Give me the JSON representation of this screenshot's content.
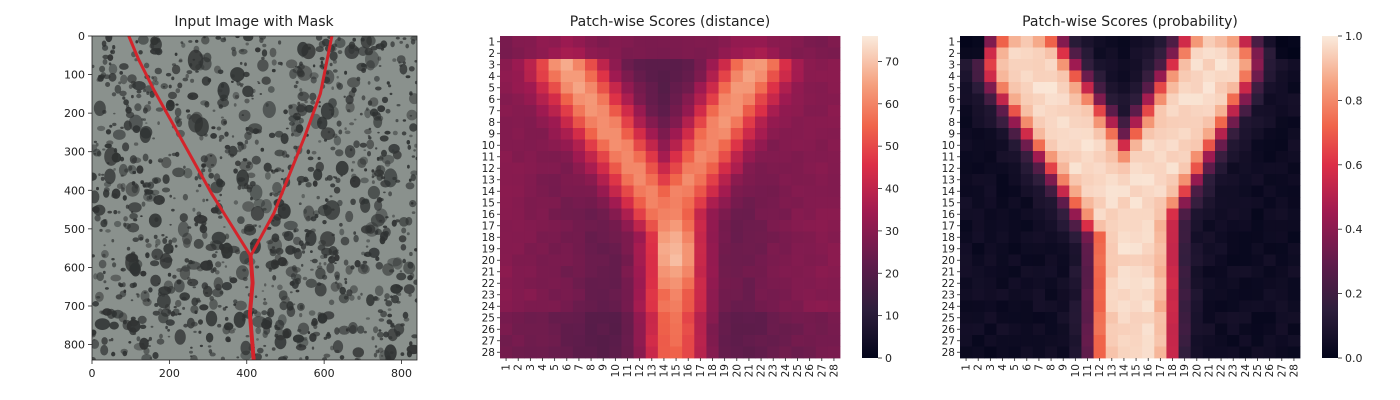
{
  "chart_data": [
    {
      "type": "image",
      "title": "Input Image with Mask",
      "xlim": [
        0,
        840
      ],
      "ylim": [
        840,
        0
      ],
      "xticks": [
        0,
        200,
        400,
        600,
        800
      ],
      "yticks": [
        0,
        100,
        200,
        300,
        400,
        500,
        600,
        700,
        800
      ],
      "mask_path": [
        [
          95,
          0
        ],
        [
          120,
          60
        ],
        [
          160,
          140
        ],
        [
          210,
          230
        ],
        [
          260,
          320
        ],
        [
          310,
          410
        ],
        [
          360,
          490
        ],
        [
          410,
          570
        ],
        [
          470,
          460
        ],
        [
          510,
          360
        ],
        [
          550,
          260
        ],
        [
          590,
          150
        ],
        [
          620,
          0
        ]
      ],
      "mask_trunk": [
        [
          410,
          570
        ],
        [
          415,
          640
        ],
        [
          408,
          720
        ],
        [
          418,
          840
        ]
      ],
      "colors": {
        "mask": "#d4242b",
        "background": "#8a918d",
        "speckle": "#2f3232"
      }
    },
    {
      "type": "heatmap",
      "title": "Patch-wise Scores (distance)",
      "x_categories": [
        "1",
        "2",
        "3",
        "4",
        "5",
        "6",
        "7",
        "8",
        "9",
        "10",
        "11",
        "12",
        "13",
        "14",
        "15",
        "16",
        "17",
        "18",
        "19",
        "20",
        "21",
        "22",
        "23",
        "24",
        "25",
        "26",
        "27",
        "28"
      ],
      "y_categories": [
        "1",
        "2",
        "3",
        "4",
        "5",
        "6",
        "7",
        "8",
        "9",
        "10",
        "11",
        "12",
        "13",
        "14",
        "15",
        "16",
        "17",
        "18",
        "19",
        "20",
        "21",
        "22",
        "23",
        "24",
        "25",
        "26",
        "27",
        "28"
      ],
      "colorbar_ticks": [
        0,
        10,
        20,
        30,
        40,
        50,
        60,
        70
      ],
      "vmin": 0,
      "vmax": 76,
      "colormap": "rocket"
    },
    {
      "type": "heatmap",
      "title": "Patch-wise Scores (probability)",
      "x_categories": [
        "1",
        "2",
        "3",
        "4",
        "5",
        "6",
        "7",
        "8",
        "9",
        "10",
        "11",
        "12",
        "13",
        "14",
        "15",
        "16",
        "17",
        "18",
        "19",
        "20",
        "21",
        "22",
        "23",
        "24",
        "25",
        "26",
        "27",
        "28"
      ],
      "y_categories": [
        "1",
        "2",
        "3",
        "4",
        "5",
        "6",
        "7",
        "8",
        "9",
        "10",
        "11",
        "12",
        "13",
        "14",
        "15",
        "16",
        "17",
        "18",
        "19",
        "20",
        "21",
        "22",
        "23",
        "24",
        "25",
        "26",
        "27",
        "28"
      ],
      "colorbar_ticks": [
        "0.0",
        "0.2",
        "0.4",
        "0.6",
        "0.8",
        "1.0"
      ],
      "vmin": 0,
      "vmax": 1,
      "colormap": "rocket"
    }
  ]
}
